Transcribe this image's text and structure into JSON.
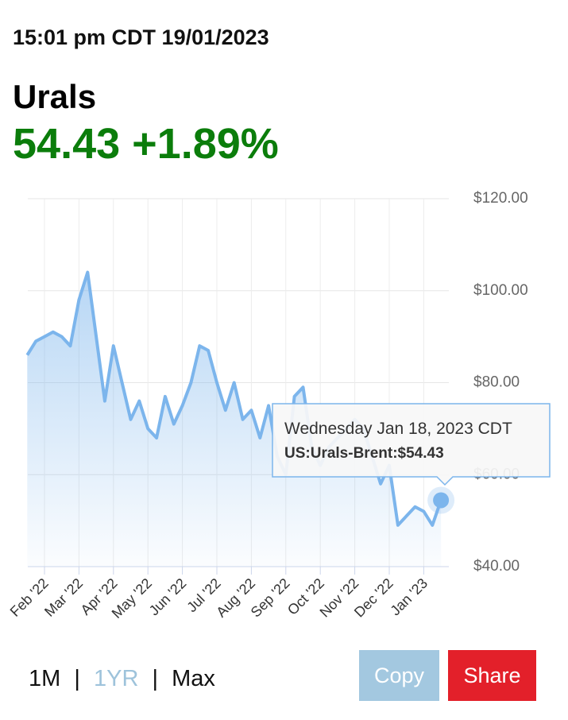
{
  "header": {
    "timestamp": "15:01 pm CDT 19/01/2023",
    "name": "Urals",
    "quote": "54.43 +1.89%"
  },
  "chart_data": {
    "type": "area",
    "categories": [
      null,
      null,
      "Feb '22",
      null,
      null,
      null,
      "Mar '22",
      null,
      null,
      null,
      "Apr '22",
      null,
      null,
      null,
      "May '22",
      null,
      null,
      null,
      "Jun '22",
      null,
      null,
      null,
      "Jul '22",
      null,
      null,
      null,
      "Aug '22",
      null,
      null,
      null,
      "Sep '22",
      null,
      null,
      null,
      "Oct '22",
      null,
      null,
      null,
      "Nov '22",
      null,
      null,
      null,
      "Dec '22",
      null,
      null,
      null,
      "Jan '23",
      null,
      null
    ],
    "series": [
      {
        "name": "US:Urals-Brent",
        "color": "#7cb5ec",
        "values": [
          86,
          89,
          90,
          91,
          90,
          88,
          98,
          104,
          90,
          76,
          88,
          80,
          72,
          76,
          70,
          68,
          77,
          71,
          75,
          80,
          88,
          87,
          80,
          74,
          80,
          72,
          74,
          68,
          75,
          64,
          60,
          77,
          79,
          66,
          62,
          66,
          68,
          70,
          72,
          70,
          64,
          58,
          62,
          49,
          51,
          53,
          52,
          49,
          54.43
        ]
      }
    ],
    "ylim": [
      40,
      120
    ],
    "yticks": [
      {
        "value": 40,
        "label": "$40.00"
      },
      {
        "value": 60,
        "label": "$60.00"
      },
      {
        "value": 80,
        "label": "$80.00"
      },
      {
        "value": 100,
        "label": "$100.00"
      },
      {
        "value": 120,
        "label": "$120.00"
      }
    ],
    "grid": true,
    "tooltip": {
      "date": "Wednesday Jan 18, 2023 CDT",
      "label": "US:Urals-Brent:$54.43"
    }
  },
  "controls": {
    "ranges": [
      "1M",
      "1YR",
      "Max"
    ],
    "separator": "|",
    "buttons": [
      "Copy",
      "Share"
    ]
  }
}
